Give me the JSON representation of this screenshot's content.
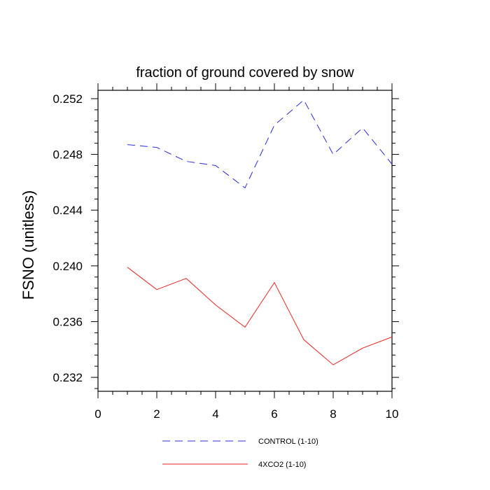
{
  "chart_data": {
    "type": "line",
    "title": "fraction of ground covered by snow",
    "xlabel": "",
    "ylabel": "FSNO  (unitless)",
    "xlim": [
      0,
      10
    ],
    "ylim": [
      0.231,
      0.2526
    ],
    "x_ticks": [
      0,
      2,
      4,
      6,
      8,
      10
    ],
    "x_tick_labels": [
      "0",
      "2",
      "4",
      "6",
      "8",
      "10"
    ],
    "y_ticks": [
      0.232,
      0.236,
      0.24,
      0.244,
      0.248,
      0.252
    ],
    "y_tick_labels": [
      "0.232",
      "0.236",
      "0.240",
      "0.244",
      "0.248",
      "0.252"
    ],
    "x": [
      1,
      2,
      3,
      4,
      5,
      6,
      7,
      8,
      9,
      10
    ],
    "series": [
      {
        "name": "CONTROL (1-10)",
        "color": "#2b2bd6",
        "style": "dashed",
        "values": [
          0.2487,
          0.2485,
          0.2475,
          0.2472,
          0.2456,
          0.2501,
          0.2519,
          0.248,
          0.2499,
          0.2473
        ]
      },
      {
        "name": "4XCO2 (1-10)",
        "color": "#e8231c",
        "style": "solid",
        "values": [
          0.2399,
          0.2383,
          0.2391,
          0.2372,
          0.2356,
          0.2388,
          0.2347,
          0.2329,
          0.2341,
          0.2349
        ]
      }
    ],
    "legend_position": "bottom-center",
    "grid": false
  }
}
